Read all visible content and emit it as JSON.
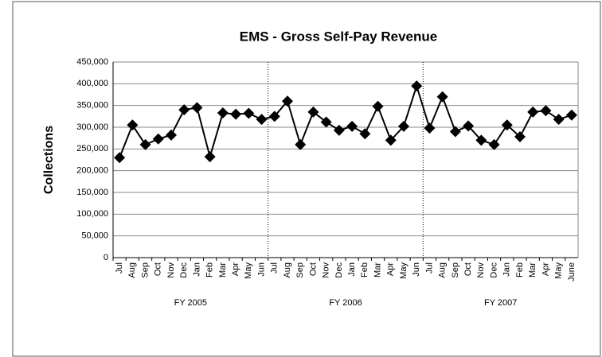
{
  "chart_data": {
    "type": "line",
    "title": "EMS - Gross Self-Pay Revenue",
    "y_label": "Collections",
    "categories": [
      "Jul",
      "Aug",
      "Sep",
      "Oct",
      "Nov",
      "Dec",
      "Jan",
      "Feb",
      "Mar",
      "Apr",
      "May",
      "Jun",
      "Jul",
      "Aug",
      "Sep",
      "Oct",
      "Nov",
      "Dec",
      "Jan",
      "Feb",
      "Mar",
      "Apr",
      "May",
      "Jun",
      "Jul",
      "Aug",
      "Sep",
      "Oct",
      "Nov",
      "Dec",
      "Jan",
      "Feb",
      "Mar",
      "Apr",
      "May",
      "June"
    ],
    "category_groups": [
      "FY 2005",
      "FY 2006",
      "FY 2007"
    ],
    "values": [
      230000,
      305000,
      260000,
      273000,
      282000,
      340000,
      345000,
      232000,
      333000,
      330000,
      332000,
      318000,
      325000,
      360000,
      260000,
      335000,
      312000,
      293000,
      302000,
      285000,
      348000,
      270000,
      302000,
      395000,
      298000,
      370000,
      290000,
      303000,
      270000,
      260000,
      305000,
      278000,
      335000,
      338000,
      318000,
      328000
    ],
    "color": "#000000",
    "ylim": [
      0,
      450000
    ],
    "yticks": [
      0,
      {
        "value": 50000,
        "label": "50,000"
      },
      {
        "value": 100000,
        "label": "100,000"
      },
      {
        "value": 150000,
        "label": "150,000"
      },
      {
        "value": 200000,
        "label": "200,000"
      },
      {
        "value": 250000,
        "label": "250,000"
      },
      {
        "value": 300000,
        "label": "300,000"
      },
      {
        "value": 350000,
        "label": "350,000"
      },
      {
        "value": 400000,
        "label": "400,000"
      },
      {
        "value": 450000,
        "label": "450,000"
      }
    ],
    "grid": true,
    "marker": "diamond"
  }
}
